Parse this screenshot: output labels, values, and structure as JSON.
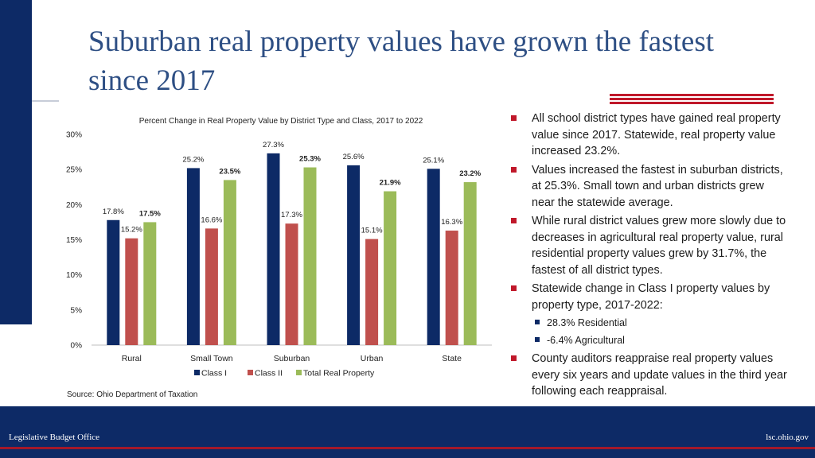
{
  "slide": {
    "title": "Suburban real property values have grown the fastest since 2017",
    "source": "Source: Ohio Department of Taxation"
  },
  "bullets": [
    {
      "text": "All school district types have gained real property value since 2017. Statewide, real property value increased 23.2%.",
      "level": 1
    },
    {
      "text": "Values increased the fastest in suburban districts, at 25.3%. Small town and urban districts grew near the statewide average.",
      "level": 1
    },
    {
      "text": "While rural district values grew more slowly due to decreases in agricultural real property value, rural residential property values grew by 31.7%, the fastest of all district types.",
      "level": 1
    },
    {
      "text": "Statewide change in Class I property values by property type, 2017-2022:",
      "level": 1
    },
    {
      "text": "28.3% Residential",
      "level": 2
    },
    {
      "text": "-6.4% Agricultural",
      "level": 2
    },
    {
      "text": "County auditors reappraise real property values every six years and update values in the third year following each reappraisal.",
      "level": 1
    }
  ],
  "footer": {
    "left": "Legislative Budget Office",
    "right": "lsc.ohio.gov"
  },
  "colors": {
    "navy": "#0d2a66",
    "title": "#2e4f84",
    "red": "#c0182a"
  },
  "chart_data": {
    "type": "bar",
    "title": "Percent Change in Real Property Value by District Type and Class, 2017 to 2022",
    "categories": [
      "Rural",
      "Small Town",
      "Suburban",
      "Urban",
      "State"
    ],
    "series": [
      {
        "name": "Class I",
        "color": "#0d2a66",
        "values": [
          17.8,
          25.2,
          27.3,
          25.6,
          25.1
        ],
        "labels": [
          "17.8%",
          "25.2%",
          "27.3%",
          "25.6%",
          "25.1%"
        ]
      },
      {
        "name": "Class II",
        "color": "#c0504d",
        "values": [
          15.2,
          16.6,
          17.3,
          15.1,
          16.3
        ],
        "labels": [
          "15.2%",
          "16.6%",
          "17.3%",
          "15.1%",
          "16.3%"
        ]
      },
      {
        "name": "Total Real Property",
        "color": "#9bbb59",
        "values": [
          17.5,
          23.5,
          25.3,
          21.9,
          23.2
        ],
        "labels": [
          "17.5%",
          "23.5%",
          "25.3%",
          "21.9%",
          "23.2%"
        ],
        "bold_labels": true
      }
    ],
    "ylim": [
      0,
      30
    ],
    "yticks": [
      "0%",
      "5%",
      "10%",
      "15%",
      "20%",
      "25%",
      "30%"
    ],
    "ytick_values": [
      0,
      5,
      10,
      15,
      20,
      25,
      30
    ],
    "grid": false,
    "legend": "bottom"
  }
}
